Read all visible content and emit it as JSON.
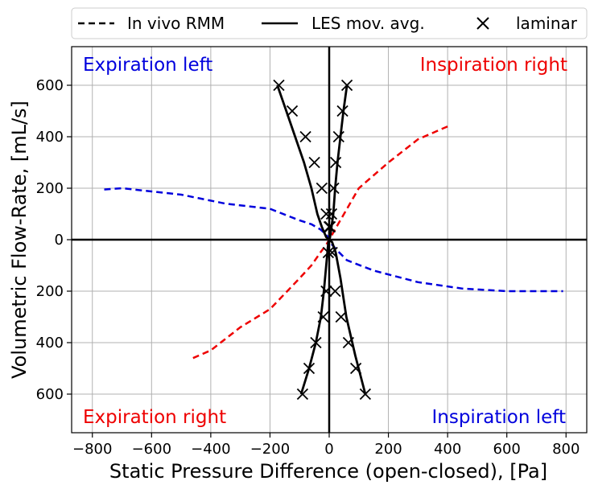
{
  "chart_data": {
    "type": "line",
    "title": "",
    "xlabel": "Static Pressure Difference (open-closed), [Pa]",
    "ylabel": "Volumetric Flow-Rate, [mL/s]",
    "xlim": [
      -870,
      870
    ],
    "ylim": [
      -750,
      750
    ],
    "x_ticks": [
      -800,
      -600,
      -400,
      -200,
      0,
      200,
      400,
      600,
      800
    ],
    "y_ticks": [
      -600,
      -400,
      -200,
      0,
      200,
      400,
      600
    ],
    "x_tick_labels": [
      "−800",
      "−600",
      "−400",
      "−200",
      "0",
      "200",
      "400",
      "600",
      "800"
    ],
    "y_tick_labels": [
      "600",
      "400",
      "200",
      "0",
      "200",
      "400",
      "600"
    ],
    "grid": true,
    "legend": {
      "position": "top",
      "entries": [
        {
          "label": "In vivo RMM",
          "style": "dashed"
        },
        {
          "label": "LES mov. avg.",
          "style": "solid"
        },
        {
          "label": "laminar",
          "style": "marker-x"
        }
      ]
    },
    "annotations": [
      {
        "text": "Expiration left",
        "color": "#0000dd",
        "corner": "top-left"
      },
      {
        "text": "Inspiration right",
        "color": "#ee0000",
        "corner": "top-right"
      },
      {
        "text": "Expiration right",
        "color": "#ee0000",
        "corner": "bottom-left"
      },
      {
        "text": "Inspiration left",
        "color": "#0000dd",
        "corner": "bottom-right"
      }
    ],
    "series": [
      {
        "name": "In vivo RMM (left)",
        "style": "dashed",
        "color": "#0000dd",
        "x": [
          -760,
          -700,
          -500,
          -350,
          -200,
          -100,
          -60,
          -30,
          -10,
          0,
          10,
          30,
          60,
          150,
          300,
          450,
          600,
          700,
          790
        ],
        "y": [
          195,
          200,
          175,
          140,
          120,
          75,
          60,
          40,
          20,
          0,
          -20,
          -45,
          -80,
          -120,
          -165,
          -190,
          -200,
          -200,
          -200
        ]
      },
      {
        "name": "In vivo RMM (right)",
        "style": "dashed",
        "color": "#ee0000",
        "x": [
          -460,
          -400,
          -300,
          -200,
          -150,
          -100,
          -60,
          -30,
          -10,
          0,
          10,
          30,
          60,
          100,
          200,
          300,
          400
        ],
        "y": [
          -460,
          -430,
          -340,
          -270,
          -210,
          -150,
          -100,
          -50,
          -20,
          0,
          20,
          60,
          120,
          200,
          300,
          390,
          440
        ]
      },
      {
        "name": "LES mov. avg. (A)",
        "style": "solid",
        "color": "#000000",
        "x": [
          -175,
          -145,
          -115,
          -85,
          -60,
          -40,
          -25,
          -10,
          0,
          10,
          22,
          38,
          58,
          88,
          122
        ],
        "y": [
          600,
          500,
          400,
          300,
          200,
          100,
          50,
          10,
          0,
          -10,
          -50,
          -150,
          -300,
          -450,
          -600
        ]
      },
      {
        "name": "LES mov. avg. (B)",
        "style": "solid",
        "color": "#000000",
        "x": [
          60,
          48,
          38,
          28,
          20,
          14,
          8,
          3,
          0,
          -3,
          -10,
          -18,
          -28,
          -45,
          -68,
          -95
        ],
        "y": [
          600,
          500,
          400,
          300,
          200,
          100,
          50,
          10,
          0,
          -10,
          -100,
          -200,
          -300,
          -400,
          -500,
          -600
        ]
      },
      {
        "name": "laminar (A)",
        "style": "marker-x",
        "color": "#000000",
        "x": [
          -170,
          -125,
          -80,
          -50,
          -25,
          -10,
          0,
          10,
          20,
          40,
          65,
          90,
          122
        ],
        "y": [
          600,
          500,
          400,
          300,
          200,
          100,
          50,
          -50,
          -200,
          -300,
          -400,
          -500,
          -600
        ]
      },
      {
        "name": "laminar (B)",
        "style": "marker-x",
        "color": "#000000",
        "x": [
          60,
          45,
          32,
          22,
          15,
          8,
          3,
          -3,
          -10,
          -20,
          -45,
          -68,
          -90
        ],
        "y": [
          600,
          500,
          400,
          300,
          200,
          100,
          50,
          -50,
          -200,
          -300,
          -400,
          -500,
          -600
        ]
      }
    ]
  }
}
